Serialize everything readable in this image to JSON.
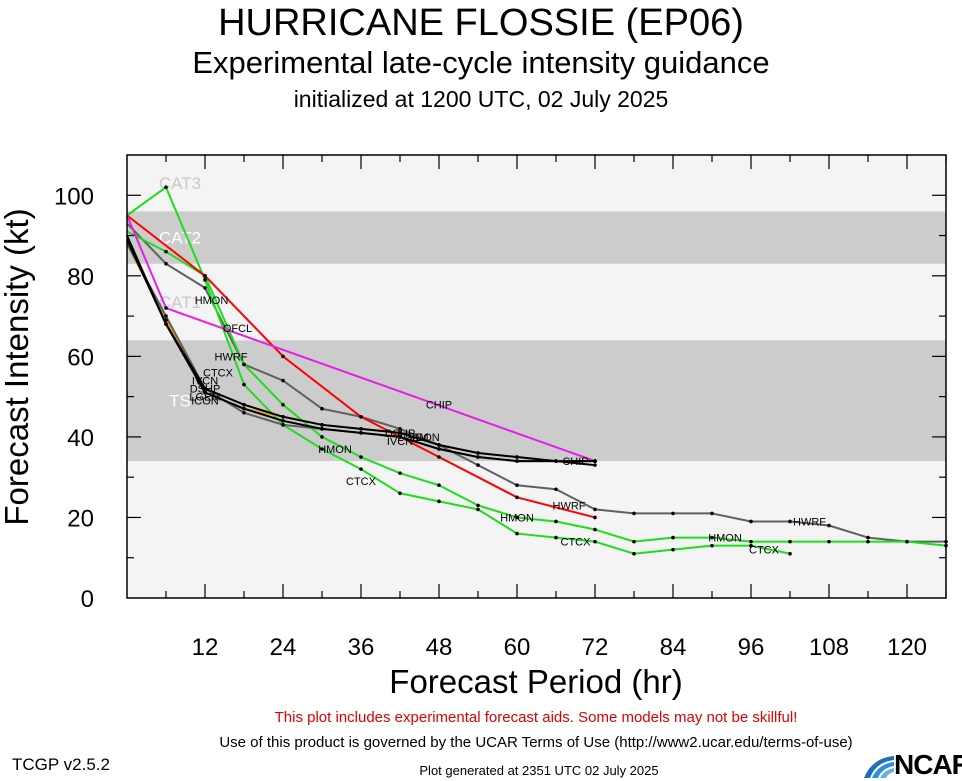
{
  "header": {
    "title": "HURRICANE FLOSSIE (EP06)",
    "subtitle": "Experimental late-cycle intensity guidance",
    "initialized": "initialized at 1200 UTC, 02 July 2025"
  },
  "footer": {
    "disclaimer": "This plot includes experimental forecast aids. Some models may not be skillful!",
    "terms": "Use of this product is governed by the UCAR Terms of Use (http://www2.ucar.edu/terms-of-use)",
    "version": "TCGP v2.5.2",
    "generated": "Plot generated at 2351 UTC   02 July 2025",
    "logo": "NCAR",
    "logo_icon": "ncar-logo-icon"
  },
  "chart_data": {
    "type": "line",
    "xlabel": "Forecast Period (hr)",
    "ylabel": "Forecast Intensity (kt)",
    "xlim": [
      0,
      126
    ],
    "ylim": [
      0,
      110
    ],
    "xticks": [
      12,
      24,
      36,
      48,
      60,
      72,
      84,
      96,
      108,
      120
    ],
    "yticks": [
      0,
      20,
      40,
      60,
      80,
      100
    ],
    "bands": [
      {
        "label": "TS",
        "from": 34,
        "to": 64,
        "color": "#cccccc"
      },
      {
        "label": "CAT1",
        "from": 64,
        "to": 83,
        "color": "#f4f4f4"
      },
      {
        "label": "CAT2",
        "from": 83,
        "to": 96,
        "color": "#cccccc"
      },
      {
        "label": "CAT3",
        "from": 96,
        "to": 113,
        "color": "#f4f4f4"
      }
    ],
    "band_below_color": "#f4f4f4",
    "series": [
      {
        "name": "HWRF",
        "color": "#606060",
        "x": [
          0,
          6,
          12,
          18,
          24,
          30,
          36,
          42,
          48,
          54,
          60,
          66,
          72,
          78,
          84,
          90,
          96,
          102,
          108,
          114,
          120,
          126
        ],
        "y": [
          93,
          83,
          77,
          58,
          54,
          47,
          45,
          42,
          38,
          33,
          28,
          27,
          22,
          21,
          21,
          21,
          19,
          19,
          18,
          15,
          14,
          14
        ],
        "labels": [
          {
            "x": 16,
            "y": 60
          },
          {
            "x": 68,
            "y": 23
          },
          {
            "x": 105,
            "y": 19
          }
        ]
      },
      {
        "name": "HMON",
        "color": "#1edd1e",
        "x": [
          0,
          6,
          12,
          18,
          24,
          30,
          36,
          42,
          48,
          54,
          60,
          66,
          72,
          78,
          84,
          90,
          96,
          102,
          108,
          114,
          120,
          126
        ],
        "y": [
          91,
          86,
          80,
          58,
          48,
          40,
          35,
          31,
          28,
          23,
          20,
          19,
          17,
          14,
          15,
          15,
          14,
          14,
          14,
          14,
          14,
          13
        ],
        "labels": [
          {
            "x": 13,
            "y": 74
          },
          {
            "x": 32,
            "y": 37
          },
          {
            "x": 60,
            "y": 20
          },
          {
            "x": 92,
            "y": 15
          }
        ]
      },
      {
        "name": "CTCX",
        "color": "#1edd1e",
        "x": [
          0,
          6,
          12,
          18,
          24,
          30,
          36,
          42,
          48,
          54,
          60,
          66,
          72,
          78,
          84,
          90,
          96,
          102
        ],
        "y": [
          95,
          102,
          79,
          53,
          43,
          37,
          32,
          26,
          24,
          22,
          16,
          15,
          14,
          11,
          12,
          13,
          13,
          11
        ],
        "labels": [
          {
            "x": 14,
            "y": 56
          },
          {
            "x": 36,
            "y": 29
          },
          {
            "x": 69,
            "y": 14
          },
          {
            "x": 98,
            "y": 12
          }
        ]
      },
      {
        "name": "OFCL",
        "color": "#ff0000",
        "x": [
          0,
          12,
          24,
          36,
          48,
          60,
          72
        ],
        "y": [
          95,
          80,
          60,
          45,
          35,
          25,
          20
        ],
        "labels": [
          {
            "x": 17,
            "y": 67
          }
        ]
      },
      {
        "name": "CHIP",
        "color": "#e61ee6",
        "x": [
          0,
          6,
          72
        ],
        "y": [
          95,
          72,
          34
        ],
        "labels": [
          {
            "x": 48,
            "y": 48
          },
          {
            "x": 69,
            "y": 34
          }
        ]
      },
      {
        "name": "DSHP",
        "color": "#f0a000",
        "x": [
          0,
          6,
          12,
          18,
          24,
          30,
          36,
          42,
          48,
          54,
          60,
          66,
          72
        ],
        "y": [
          88,
          69,
          51,
          47,
          45,
          43,
          42,
          41,
          38,
          36,
          35,
          34,
          34
        ],
        "labels": [
          {
            "x": 12,
            "y": 52
          },
          {
            "x": 42,
            "y": 41
          }
        ]
      },
      {
        "name": "LGEM",
        "color": "#606060",
        "x": [
          0,
          6,
          12,
          18,
          24,
          30,
          36,
          42,
          48,
          54,
          60,
          66,
          72
        ],
        "y": [
          88,
          70,
          52,
          46,
          43,
          42,
          41,
          40,
          37,
          35,
          34,
          34,
          34
        ],
        "labels": [
          {
            "x": 12,
            "y": 50
          },
          {
            "x": 44,
            "y": 40
          }
        ]
      },
      {
        "name": "IVCN",
        "color": "#000000",
        "x": [
          0,
          6,
          12,
          18,
          24,
          30,
          36,
          42,
          48,
          54,
          60,
          66,
          72
        ],
        "y": [
          90,
          68,
          52,
          48,
          45,
          43,
          42,
          41,
          38,
          36,
          35,
          34,
          34
        ],
        "labels": [
          {
            "x": 12,
            "y": 54
          },
          {
            "x": 42,
            "y": 39
          }
        ]
      },
      {
        "name": "ICON",
        "color": "#000000",
        "x": [
          0,
          6,
          12,
          18,
          24,
          30,
          36,
          42,
          48,
          54,
          60,
          66,
          72
        ],
        "y": [
          89,
          68,
          51,
          47,
          44,
          42,
          41,
          40,
          37,
          35,
          34,
          34,
          33
        ],
        "labels": [
          {
            "x": 12,
            "y": 49
          },
          {
            "x": 46,
            "y": 40
          }
        ]
      }
    ]
  }
}
